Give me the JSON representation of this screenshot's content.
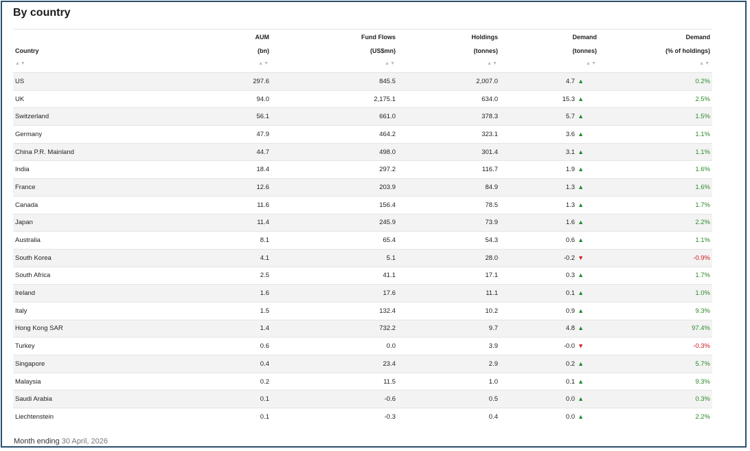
{
  "title": "By country",
  "columns": {
    "country": {
      "line1": "",
      "line2": "Country"
    },
    "aum": {
      "line1": "AUM",
      "line2": "(bn)"
    },
    "flows": {
      "line1": "Fund Flows",
      "line2": "(US$mn)"
    },
    "holdings": {
      "line1": "Holdings",
      "line2": "(tonnes)"
    },
    "demand": {
      "line1": "Demand",
      "line2": "(tonnes)"
    },
    "demand_pct": {
      "line1": "Demand",
      "line2": "(% of holdings)"
    }
  },
  "sort_glyph": "▲▼",
  "colors": {
    "up": "#1f8a2a",
    "down": "#d11b1b",
    "border": "#2a4f6e"
  },
  "rows": [
    {
      "country": "US",
      "aum": "297.6",
      "flows": "845.5",
      "holdings": "2,007.0",
      "demand": "4.7",
      "dir": "up",
      "pct": "0.2%"
    },
    {
      "country": "UK",
      "aum": "94.0",
      "flows": "2,175.1",
      "holdings": "634.0",
      "demand": "15.3",
      "dir": "up",
      "pct": "2.5%"
    },
    {
      "country": "Switzerland",
      "aum": "56.1",
      "flows": "661.0",
      "holdings": "378.3",
      "demand": "5.7",
      "dir": "up",
      "pct": "1.5%"
    },
    {
      "country": "Germany",
      "aum": "47.9",
      "flows": "464.2",
      "holdings": "323.1",
      "demand": "3.6",
      "dir": "up",
      "pct": "1.1%"
    },
    {
      "country": "China P.R. Mainland",
      "aum": "44.7",
      "flows": "498.0",
      "holdings": "301.4",
      "demand": "3.1",
      "dir": "up",
      "pct": "1.1%"
    },
    {
      "country": "India",
      "aum": "18.4",
      "flows": "297.2",
      "holdings": "116.7",
      "demand": "1.9",
      "dir": "up",
      "pct": "1.6%"
    },
    {
      "country": "France",
      "aum": "12.6",
      "flows": "203.9",
      "holdings": "84.9",
      "demand": "1.3",
      "dir": "up",
      "pct": "1.6%"
    },
    {
      "country": "Canada",
      "aum": "11.6",
      "flows": "156.4",
      "holdings": "78.5",
      "demand": "1.3",
      "dir": "up",
      "pct": "1.7%"
    },
    {
      "country": "Japan",
      "aum": "11.4",
      "flows": "245.9",
      "holdings": "73.9",
      "demand": "1.6",
      "dir": "up",
      "pct": "2.2%"
    },
    {
      "country": "Australia",
      "aum": "8.1",
      "flows": "65.4",
      "holdings": "54.3",
      "demand": "0.6",
      "dir": "up",
      "pct": "1.1%"
    },
    {
      "country": "South Korea",
      "aum": "4.1",
      "flows": "5.1",
      "holdings": "28.0",
      "demand": "-0.2",
      "dir": "down",
      "pct": "-0.9%"
    },
    {
      "country": "South Africa",
      "aum": "2.5",
      "flows": "41.1",
      "holdings": "17.1",
      "demand": "0.3",
      "dir": "up",
      "pct": "1.7%"
    },
    {
      "country": "Ireland",
      "aum": "1.6",
      "flows": "17.6",
      "holdings": "11.1",
      "demand": "0.1",
      "dir": "up",
      "pct": "1.0%"
    },
    {
      "country": "Italy",
      "aum": "1.5",
      "flows": "132.4",
      "holdings": "10.2",
      "demand": "0.9",
      "dir": "up",
      "pct": "9.3%"
    },
    {
      "country": "Hong Kong SAR",
      "aum": "1.4",
      "flows": "732.2",
      "holdings": "9.7",
      "demand": "4.8",
      "dir": "up",
      "pct": "97.4%"
    },
    {
      "country": "Turkey",
      "aum": "0.6",
      "flows": "0.0",
      "holdings": "3.9",
      "demand": "-0.0",
      "dir": "down",
      "pct": "-0.3%"
    },
    {
      "country": "Singapore",
      "aum": "0.4",
      "flows": "23.4",
      "holdings": "2.9",
      "demand": "0.2",
      "dir": "up",
      "pct": "5.7%"
    },
    {
      "country": "Malaysia",
      "aum": "0.2",
      "flows": "11.5",
      "holdings": "1.0",
      "demand": "0.1",
      "dir": "up",
      "pct": "9.3%"
    },
    {
      "country": "Saudi Arabia",
      "aum": "0.1",
      "flows": "-0.6",
      "holdings": "0.5",
      "demand": "0.0",
      "dir": "up",
      "pct": "0.3%"
    },
    {
      "country": "Liechtenstein",
      "aum": "0.1",
      "flows": "-0.3",
      "holdings": "0.4",
      "demand": "0.0",
      "dir": "up",
      "pct": "2.2%"
    }
  ],
  "footer": {
    "label": "Month ending",
    "date": "30 April, 2026"
  }
}
